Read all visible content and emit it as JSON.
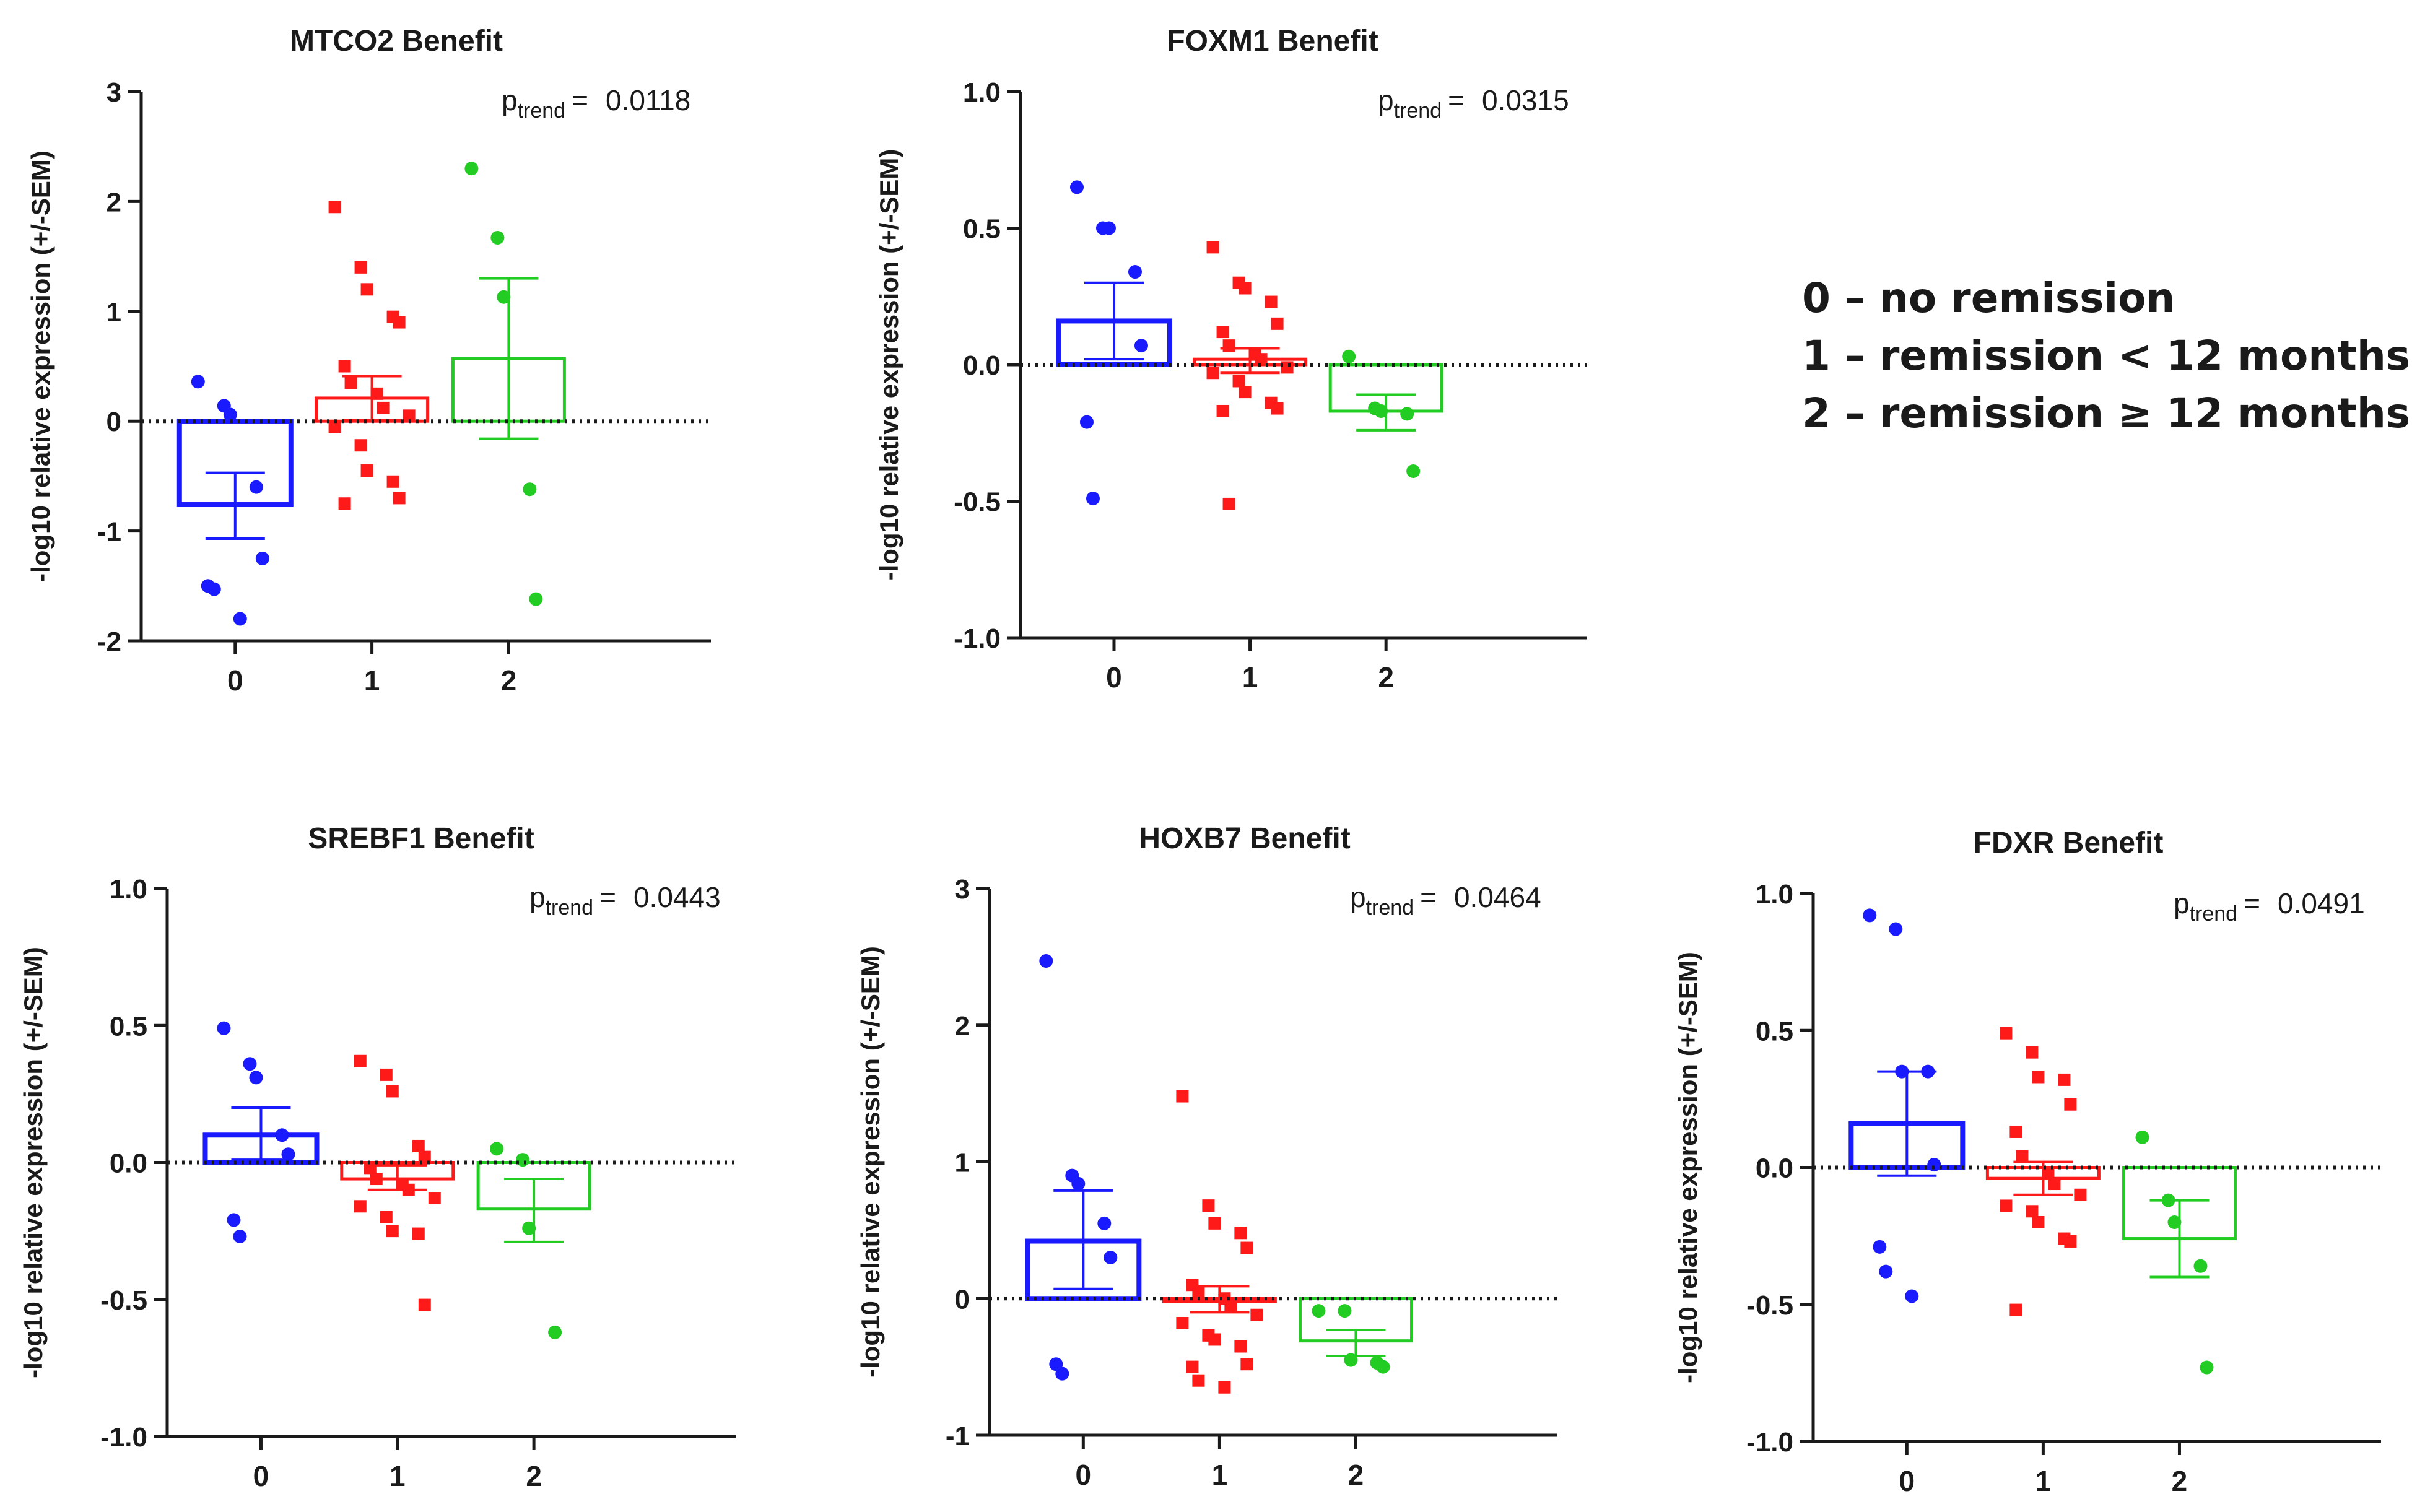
{
  "colors": {
    "group0": "#1a1aff",
    "group1": "#ff1a1a",
    "group2": "#22cc22",
    "axis": "#1a1a1a"
  },
  "legend": {
    "items": [
      "0 – no remission",
      "1 – remission < 12 months",
      "2 – remission ≥ 12 months"
    ]
  },
  "chart_data": [
    {
      "type": "bar",
      "title": "MTCO2 Benefit",
      "ylabel": "-log10 relative expression (+/-SEM)",
      "categories": [
        "0",
        "1",
        "2"
      ],
      "ylim": [
        -2,
        3
      ],
      "yticks": [
        -2,
        -1,
        0,
        1,
        2,
        3
      ],
      "ytick_labels": [
        "-2",
        "-1",
        "0",
        "1",
        "2",
        "3"
      ],
      "p_label": "p",
      "p_sub": "trend",
      "p_eq": "=",
      "p_value": "0.0118",
      "means": [
        -0.76,
        0.21,
        0.57
      ],
      "sem": [
        [
          -1.07,
          -0.47
        ],
        [
          0.01,
          0.41
        ],
        [
          -0.16,
          1.3
        ]
      ],
      "points": [
        [
          0.36,
          0.14,
          0.06,
          -0.6,
          -1.25,
          -1.5,
          -1.53,
          -1.8
        ],
        [
          1.95,
          1.4,
          1.2,
          0.95,
          0.9,
          0.5,
          0.35,
          0.25,
          0.12,
          0.05,
          -0.05,
          -0.22,
          -0.45,
          -0.55,
          -0.7,
          -0.75
        ],
        [
          2.3,
          1.67,
          1.13,
          -0.62,
          -1.62
        ]
      ]
    },
    {
      "type": "bar",
      "title": "FOXM1 Benefit",
      "ylabel": "-log10 relative expression (+/-SEM)",
      "categories": [
        "0",
        "1",
        "2"
      ],
      "ylim": [
        -1,
        1
      ],
      "yticks": [
        -1,
        -0.5,
        0,
        0.5,
        1
      ],
      "ytick_labels": [
        "-1.0",
        "-0.5",
        "0.0",
        "0.5",
        "1.0"
      ],
      "p_label": "p",
      "p_sub": "trend",
      "p_eq": "=",
      "p_value": "0.0315",
      "means": [
        0.16,
        0.02,
        -0.17
      ],
      "sem": [
        [
          0.02,
          0.3
        ],
        [
          -0.03,
          0.06
        ],
        [
          -0.24,
          -0.11
        ]
      ],
      "points": [
        [
          0.65,
          0.5,
          0.5,
          0.34,
          0.07,
          -0.21,
          -0.49
        ],
        [
          0.43,
          0.3,
          0.28,
          0.23,
          0.15,
          0.12,
          0.07,
          0.04,
          0.02,
          -0.01,
          -0.03,
          -0.06,
          -0.1,
          -0.14,
          -0.16,
          -0.17,
          -0.51
        ],
        [
          0.03,
          -0.16,
          -0.17,
          -0.18,
          -0.39
        ]
      ]
    },
    {
      "type": "bar",
      "title": "SREBF1 Benefit",
      "ylabel": "-log10 relative expression (+/-SEM)",
      "categories": [
        "0",
        "1",
        "2"
      ],
      "ylim": [
        -1,
        1
      ],
      "yticks": [
        -1,
        -0.5,
        0,
        0.5,
        1
      ],
      "ytick_labels": [
        "-1.0",
        "-0.5",
        "0.0",
        "0.5",
        "1.0"
      ],
      "p_label": "p",
      "p_sub": "trend",
      "p_eq": "=",
      "p_value": "0.0443",
      "means": [
        0.1,
        -0.06,
        -0.17
      ],
      "sem": [
        [
          0.01,
          0.2
        ],
        [
          -0.1,
          -0.01
        ],
        [
          -0.29,
          -0.06
        ]
      ],
      "points": [
        [
          0.49,
          0.36,
          0.31,
          0.1,
          0.03,
          -0.21,
          -0.27
        ],
        [
          0.37,
          0.32,
          0.26,
          0.06,
          0.02,
          -0.02,
          -0.06,
          -0.08,
          -0.1,
          -0.13,
          -0.16,
          -0.2,
          -0.25,
          -0.26,
          -0.52
        ],
        [
          0.05,
          0.01,
          -0.24,
          -0.62
        ]
      ]
    },
    {
      "type": "bar",
      "title": "HOXB7 Benefit",
      "ylabel": "-log10 relative expression (+/-SEM)",
      "categories": [
        "0",
        "1",
        "2"
      ],
      "ylim": [
        -1,
        3
      ],
      "yticks": [
        -1,
        0,
        1,
        2,
        3
      ],
      "ytick_labels": [
        "-1",
        "0",
        "1",
        "2",
        "3"
      ],
      "p_label": "p",
      "p_sub": "trend",
      "p_eq": "=",
      "p_value": "0.0464",
      "means": [
        0.42,
        -0.02,
        -0.31
      ],
      "sem": [
        [
          0.07,
          0.79
        ],
        [
          -0.1,
          0.09
        ],
        [
          -0.42,
          -0.23
        ]
      ],
      "points": [
        [
          2.47,
          0.9,
          0.84,
          0.55,
          0.3,
          -0.48,
          -0.55
        ],
        [
          1.48,
          0.68,
          0.55,
          0.48,
          0.37,
          0.1,
          0.05,
          0.0,
          -0.05,
          -0.12,
          -0.18,
          -0.27,
          -0.3,
          -0.35,
          -0.48,
          -0.5,
          -0.6,
          -0.65
        ],
        [
          -0.09,
          -0.09,
          -0.45,
          -0.47,
          -0.5
        ]
      ]
    },
    {
      "type": "bar",
      "title": "FDXR Benefit",
      "ylabel": "-log10 relative expression (+/-SEM)",
      "categories": [
        "0",
        "1",
        "2"
      ],
      "ylim": [
        -1,
        1
      ],
      "yticks": [
        -1,
        -0.5,
        0,
        0.5,
        1
      ],
      "ytick_labels": [
        "-1.0",
        "-0.5",
        "0.0",
        "0.5",
        "1.0"
      ],
      "p_label": "p",
      "p_sub": "trend",
      "p_eq": "=",
      "p_value": "0.0491",
      "means": [
        0.16,
        -0.04,
        -0.26
      ],
      "sem": [
        [
          -0.03,
          0.35
        ],
        [
          -0.1,
          0.02
        ],
        [
          -0.4,
          -0.12
        ]
      ],
      "points": [
        [
          0.92,
          0.87,
          0.35,
          0.35,
          0.01,
          -0.29,
          -0.38,
          -0.47
        ],
        [
          0.49,
          0.42,
          0.33,
          0.32,
          0.23,
          0.13,
          0.04,
          -0.02,
          -0.06,
          -0.1,
          -0.14,
          -0.16,
          -0.2,
          -0.26,
          -0.27,
          -0.52
        ],
        [
          0.11,
          -0.12,
          -0.2,
          -0.36,
          -0.73
        ]
      ]
    }
  ]
}
